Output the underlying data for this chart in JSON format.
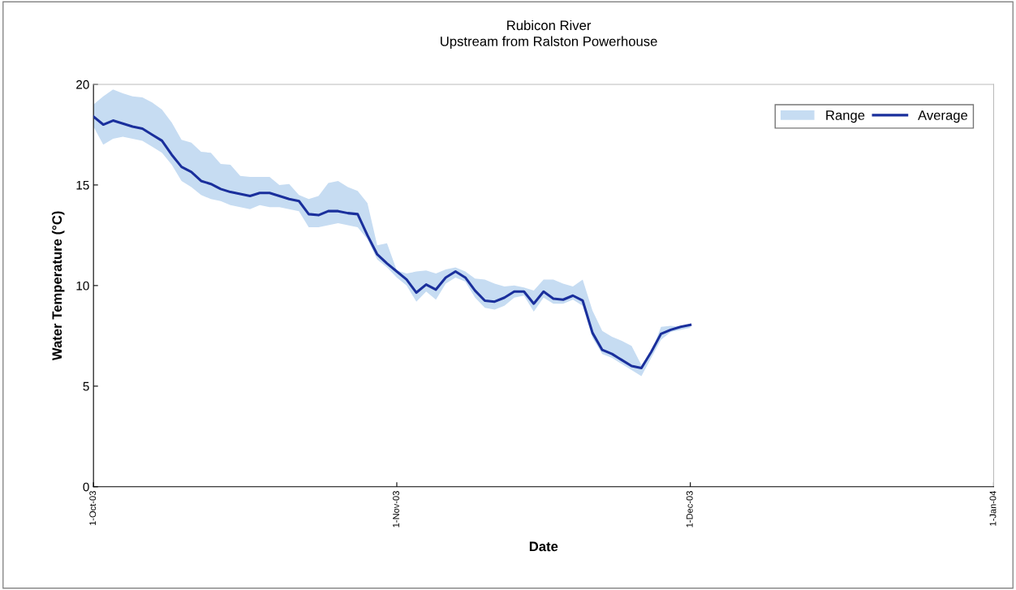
{
  "chart_data": {
    "type": "line",
    "title": "Rubicon River",
    "subtitle": "Upstream from Ralston Powerhouse",
    "xlabel": "Date",
    "ylabel": "Water Temperature (°C)",
    "x": [
      "2003-10-01",
      "2003-10-02",
      "2003-10-03",
      "2003-10-04",
      "2003-10-05",
      "2003-10-06",
      "2003-10-07",
      "2003-10-08",
      "2003-10-09",
      "2003-10-10",
      "2003-10-11",
      "2003-10-12",
      "2003-10-13",
      "2003-10-14",
      "2003-10-15",
      "2003-10-16",
      "2003-10-17",
      "2003-10-18",
      "2003-10-19",
      "2003-10-20",
      "2003-10-21",
      "2003-10-22",
      "2003-10-23",
      "2003-10-24",
      "2003-10-25",
      "2003-10-26",
      "2003-10-27",
      "2003-10-28",
      "2003-10-29",
      "2003-10-30",
      "2003-10-31",
      "2003-11-01",
      "2003-11-02",
      "2003-11-03",
      "2003-11-04",
      "2003-11-05",
      "2003-11-06",
      "2003-11-07",
      "2003-11-08",
      "2003-11-09",
      "2003-11-10",
      "2003-11-11",
      "2003-11-12",
      "2003-11-13",
      "2003-11-14",
      "2003-11-15",
      "2003-11-16",
      "2003-11-17",
      "2003-11-18",
      "2003-11-19",
      "2003-11-20",
      "2003-11-21",
      "2003-11-22",
      "2003-11-23",
      "2003-11-24",
      "2003-11-25",
      "2003-11-26",
      "2003-11-27",
      "2003-11-28",
      "2003-11-29",
      "2003-11-30",
      "2003-12-01"
    ],
    "series": [
      {
        "name": "Range",
        "type": "area",
        "color": "#c6dcf2",
        "values": [
          null,
          null,
          null,
          null,
          null,
          null,
          null,
          null,
          null,
          null,
          null,
          null,
          null,
          null,
          null,
          null,
          null,
          null,
          null,
          null,
          null,
          null,
          null,
          null,
          null,
          null,
          null,
          null,
          null,
          null,
          null,
          null,
          null,
          null,
          null,
          null,
          null,
          null,
          null,
          null,
          null,
          null,
          null,
          null,
          null,
          null,
          null,
          null,
          null,
          null,
          null,
          null,
          null,
          null,
          null,
          null,
          null,
          null,
          null,
          null,
          null,
          null
        ]
      },
      {
        "name": "Average",
        "color": "#1a2f9c",
        "values": [
          18.4,
          18.0,
          18.2,
          18.05,
          17.9,
          17.8,
          17.5,
          17.2,
          16.5,
          15.9,
          15.65,
          15.2,
          15.05,
          14.8,
          14.65,
          14.55,
          14.45,
          14.6,
          14.6,
          14.45,
          14.3,
          14.2,
          13.55,
          13.5,
          13.7,
          13.7,
          13.6,
          13.55,
          12.5,
          11.55,
          11.1,
          10.7,
          10.3,
          9.65,
          10.05,
          9.8,
          10.4,
          10.7,
          10.4,
          9.75,
          9.25,
          9.2,
          9.4,
          9.7,
          9.7,
          9.1,
          9.7,
          9.35,
          9.3,
          9.5,
          9.25,
          7.65,
          6.8,
          6.6,
          6.3,
          6.0,
          5.9,
          6.7,
          7.6,
          7.8,
          7.95,
          8.05
        ],
        "upper": [
          19.0,
          19.4,
          19.75,
          19.55,
          19.4,
          19.35,
          19.1,
          18.75,
          18.1,
          17.25,
          17.1,
          16.65,
          16.6,
          16.05,
          16.0,
          15.45,
          15.4,
          15.4,
          15.4,
          15.0,
          15.05,
          14.5,
          14.3,
          14.45,
          15.1,
          15.2,
          14.9,
          14.7,
          14.1,
          12.0,
          12.1,
          10.75,
          10.6,
          10.7,
          10.75,
          10.6,
          10.8,
          10.9,
          10.7,
          10.35,
          10.3,
          10.1,
          9.95,
          10.0,
          9.9,
          9.75,
          10.3,
          10.3,
          10.1,
          9.95,
          10.3,
          8.75,
          7.75,
          7.45,
          7.25,
          7.0,
          6.05,
          6.65,
          7.95,
          8.0,
          7.95,
          8.1
        ],
        "lower": [
          17.9,
          17.0,
          17.3,
          17.4,
          17.3,
          17.2,
          16.9,
          16.6,
          16.0,
          15.2,
          14.9,
          14.5,
          14.3,
          14.2,
          14.0,
          13.9,
          13.8,
          14.0,
          13.9,
          13.9,
          13.8,
          13.7,
          12.9,
          12.9,
          13.0,
          13.1,
          13.0,
          12.9,
          12.3,
          11.3,
          10.9,
          10.4,
          10.0,
          9.2,
          9.7,
          9.3,
          10.1,
          10.4,
          10.2,
          9.4,
          8.9,
          8.8,
          9.0,
          9.4,
          9.5,
          8.7,
          9.4,
          9.1,
          9.1,
          9.3,
          9.0,
          7.4,
          6.6,
          6.4,
          6.1,
          5.8,
          5.5,
          6.4,
          7.3,
          7.7,
          7.8,
          7.9
        ]
      }
    ],
    "xlim": [
      "2003-10-01",
      "2004-01-01"
    ],
    "xticks": [
      {
        "value": "2003-10-01",
        "label": "1-Oct-03"
      },
      {
        "value": "2003-11-01",
        "label": "1-Nov-03"
      },
      {
        "value": "2003-12-01",
        "label": "1-Dec-03"
      },
      {
        "value": "2004-01-01",
        "label": "1-Jan-04"
      }
    ],
    "ylim": [
      0,
      20
    ],
    "yticks": [
      0,
      5,
      10,
      15,
      20
    ],
    "grid": false,
    "legend": "top right",
    "marker": "none",
    "line_style": "solid"
  }
}
